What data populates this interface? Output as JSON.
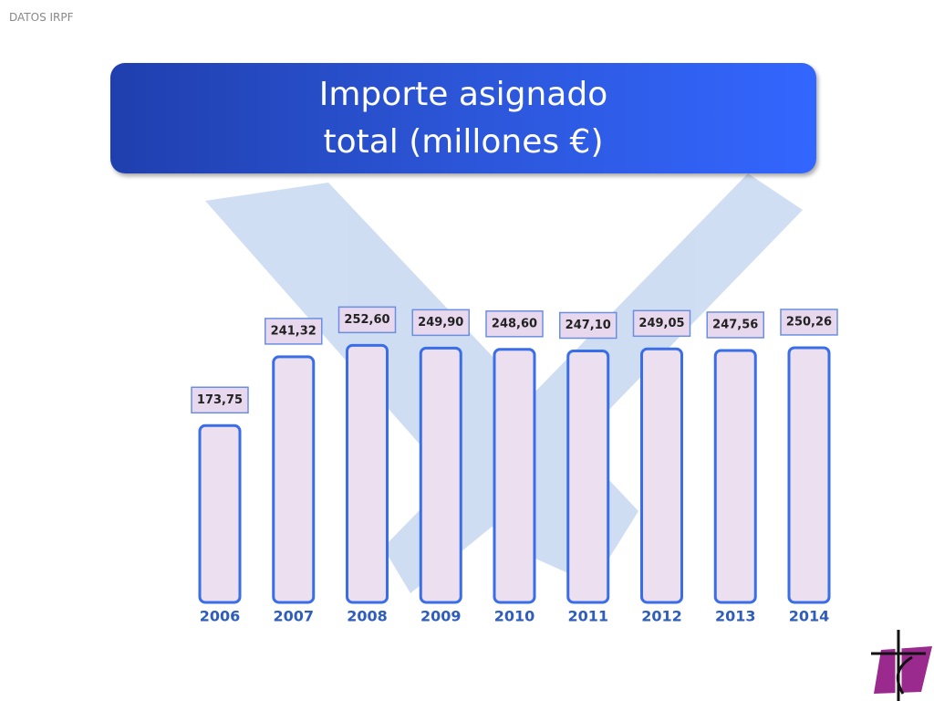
{
  "header": "DATOS IRPF",
  "chart_data": {
    "type": "bar",
    "title": "Importe asignado total (millones €)",
    "categories": [
      "2006",
      "2007",
      "2008",
      "2009",
      "2010",
      "2011",
      "2012",
      "2013",
      "2014"
    ],
    "values": [
      173.75,
      241.32,
      252.6,
      249.9,
      248.6,
      247.1,
      249.05,
      247.56,
      250.26
    ],
    "value_labels": [
      "173,75",
      "241,32",
      "252,60",
      "249,90",
      "248,60",
      "247,10",
      "249,05",
      "247,56",
      "250,26"
    ],
    "color": "#ecdff0"
  }
}
